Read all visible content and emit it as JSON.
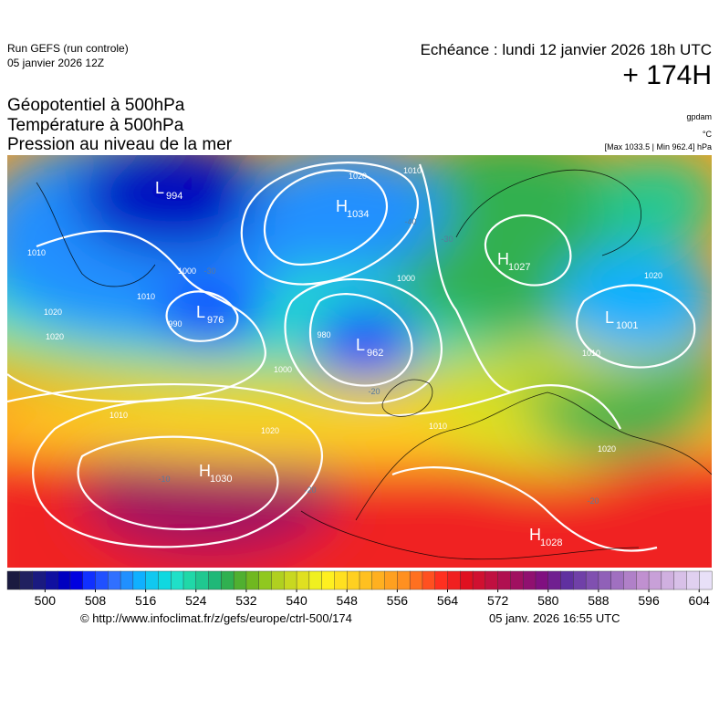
{
  "header": {
    "run": "Run GEFS (run controle)",
    "run_date": "05 janvier 2026 12Z",
    "forecast": "Echéance : lundi 12 janvier 2026 18h UTC",
    "lead": "+ 174H"
  },
  "titles": [
    "Géopotentiel à 500hPa",
    "Température à 500hPa",
    "Pression au niveau de la mer"
  ],
  "units": [
    "gpdam",
    "°C",
    "[Max 1033.5 | Min 962.4] hPa"
  ],
  "pressure_centers": [
    {
      "type": "L",
      "value": 994
    },
    {
      "type": "H",
      "value": 1034
    },
    {
      "type": "L",
      "value": 976
    },
    {
      "type": "L",
      "value": 962
    },
    {
      "type": "H",
      "value": 1027
    },
    {
      "type": "L",
      "value": 1001
    },
    {
      "type": "H",
      "value": 1030
    },
    {
      "type": "H",
      "value": 1028
    }
  ],
  "isobar_labels": [
    1020,
    1010,
    1000,
    1010,
    1020,
    1010,
    1000,
    990,
    980,
    1000,
    1010,
    1020,
    1010,
    1020,
    1020,
    1010,
    1020
  ],
  "temperature_labels": [
    -40,
    -30,
    -20,
    -30,
    -20,
    -20,
    -10
  ],
  "colorbar": {
    "range": [
      494,
      606
    ],
    "ticks": [
      500,
      508,
      516,
      524,
      532,
      540,
      548,
      556,
      564,
      572,
      580,
      588,
      596,
      604
    ],
    "colors": [
      "#1a1a40",
      "#202060",
      "#1a1a80",
      "#1010a0",
      "#0000c0",
      "#0000e0",
      "#1030ff",
      "#2050ff",
      "#3070ff",
      "#2090ff",
      "#10b0ff",
      "#10c8f0",
      "#10d8e0",
      "#20e0c8",
      "#20d8a8",
      "#20c890",
      "#20b878",
      "#30b050",
      "#50b030",
      "#70b820",
      "#90c820",
      "#b0d020",
      "#c8d820",
      "#e0e020",
      "#f0f020",
      "#fff020",
      "#ffe020",
      "#ffd020",
      "#ffc020",
      "#ffb020",
      "#ffa020",
      "#ff9020",
      "#ff7020",
      "#ff5020",
      "#ff3020",
      "#f02020",
      "#e01020",
      "#d01030",
      "#c01040",
      "#b01050",
      "#a01060",
      "#901070",
      "#801080",
      "#702090",
      "#6030a0",
      "#7040a8",
      "#8050b0",
      "#9060b8",
      "#a070c0",
      "#b080c8",
      "#c090d0",
      "#c8a0d8",
      "#d0b0e0",
      "#d8c0e8",
      "#e0d0f0",
      "#e8e0f8"
    ]
  },
  "footer": {
    "url": "© http://www.infoclimat.fr/z/gefs/europe/ctrl-500/174",
    "generated": "05 janv. 2026 16:55 UTC"
  }
}
